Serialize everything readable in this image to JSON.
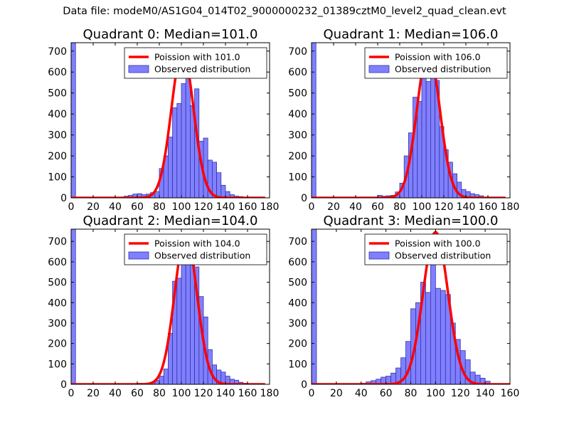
{
  "figure": {
    "suptitle": "Data file: modeM0/AS1G04_014T02_9000000232_01389cztM0_level2_quad_clean.evt"
  },
  "colors": {
    "bar_fill": "#8080ff",
    "bar_edge": "#3333aa",
    "curve": "#ff0000",
    "text": "#000000"
  },
  "chart_data": [
    {
      "type": "bar",
      "title": "Quadrant 0: Median=101.0",
      "xlim": [
        0,
        180
      ],
      "ylim": [
        0,
        740
      ],
      "xticks": [
        0,
        20,
        40,
        60,
        80,
        100,
        120,
        140,
        160,
        180
      ],
      "yticks": [
        0,
        100,
        200,
        300,
        400,
        500,
        600,
        700
      ],
      "legend": {
        "position": "top-right",
        "entries": [
          "Poission with 101.0",
          "Observed distribution"
        ]
      },
      "bin_width": 4,
      "bin_starts": [
        0,
        48,
        52,
        56,
        60,
        64,
        68,
        72,
        76,
        80,
        84,
        88,
        92,
        96,
        100,
        104,
        108,
        112,
        116,
        120,
        124,
        128,
        132,
        136,
        140,
        144,
        148,
        152,
        156
      ],
      "counts": [
        740,
        8,
        12,
        18,
        20,
        15,
        18,
        25,
        30,
        140,
        200,
        290,
        430,
        450,
        545,
        610,
        440,
        520,
        270,
        285,
        180,
        170,
        120,
        60,
        30,
        15,
        8,
        6,
        3
      ],
      "poisson": {
        "mean": 101.0,
        "peak": 700,
        "x_range": [
          0,
          176
        ]
      }
    },
    {
      "type": "bar",
      "title": "Quadrant 1: Median=106.0",
      "xlim": [
        0,
        180
      ],
      "ylim": [
        0,
        740
      ],
      "xticks": [
        0,
        20,
        40,
        60,
        80,
        100,
        120,
        140,
        160,
        180
      ],
      "yticks": [
        0,
        100,
        200,
        300,
        400,
        500,
        600,
        700
      ],
      "legend": {
        "position": "top-right",
        "entries": [
          "Poission with 106.0",
          "Observed distribution"
        ]
      },
      "bin_width": 4,
      "bin_starts": [
        0,
        60,
        64,
        68,
        72,
        76,
        80,
        84,
        88,
        92,
        96,
        100,
        104,
        108,
        112,
        116,
        120,
        124,
        128,
        132,
        136,
        140,
        144,
        148,
        152
      ],
      "counts": [
        740,
        12,
        8,
        10,
        12,
        28,
        70,
        200,
        310,
        480,
        460,
        700,
        555,
        640,
        560,
        340,
        230,
        170,
        115,
        75,
        40,
        30,
        20,
        15,
        10
      ],
      "poisson": {
        "mean": 106.0,
        "peak": 705,
        "x_range": [
          0,
          176
        ]
      }
    },
    {
      "type": "bar",
      "title": "Quadrant 2: Median=104.0",
      "xlim": [
        0,
        180
      ],
      "ylim": [
        0,
        760
      ],
      "xticks": [
        0,
        20,
        40,
        60,
        80,
        100,
        120,
        140,
        160,
        180
      ],
      "yticks": [
        0,
        100,
        200,
        300,
        400,
        500,
        600,
        700
      ],
      "legend": {
        "position": "top-right",
        "entries": [
          "Poission with 104.0",
          "Observed distribution"
        ]
      },
      "bin_width": 4,
      "bin_starts": [
        0,
        60,
        64,
        68,
        72,
        76,
        80,
        84,
        88,
        92,
        96,
        100,
        104,
        108,
        112,
        116,
        120,
        124,
        128,
        132,
        136,
        140,
        144,
        148,
        152,
        156,
        160
      ],
      "counts": [
        760,
        5,
        3,
        5,
        10,
        20,
        40,
        75,
        250,
        505,
        520,
        700,
        710,
        585,
        575,
        430,
        330,
        170,
        95,
        70,
        60,
        40,
        25,
        20,
        10,
        5,
        3
      ],
      "poisson": {
        "mean": 104.0,
        "peak": 730,
        "x_range": [
          0,
          176
        ]
      }
    },
    {
      "type": "bar",
      "title": "Quadrant 3: Median=100.0",
      "xlim": [
        0,
        160
      ],
      "ylim": [
        0,
        760
      ],
      "xticks": [
        0,
        20,
        40,
        60,
        80,
        100,
        120,
        140,
        160
      ],
      "yticks": [
        0,
        100,
        200,
        300,
        400,
        500,
        600,
        700
      ],
      "legend": {
        "position": "top-right",
        "entries": [
          "Poission with 100.0",
          "Observed distribution"
        ]
      },
      "bin_width": 4,
      "bin_starts": [
        0,
        40,
        44,
        48,
        52,
        56,
        60,
        64,
        68,
        72,
        76,
        80,
        84,
        88,
        92,
        96,
        100,
        104,
        108,
        112,
        116,
        120,
        124,
        128,
        132,
        136,
        140
      ],
      "counts": [
        760,
        5,
        12,
        18,
        25,
        35,
        40,
        55,
        80,
        130,
        210,
        370,
        400,
        500,
        450,
        690,
        470,
        460,
        440,
        300,
        220,
        165,
        120,
        60,
        45,
        30,
        15
      ],
      "poisson": {
        "mean": 100.0,
        "peak": 745,
        "x_range": [
          0,
          160
        ]
      }
    }
  ]
}
